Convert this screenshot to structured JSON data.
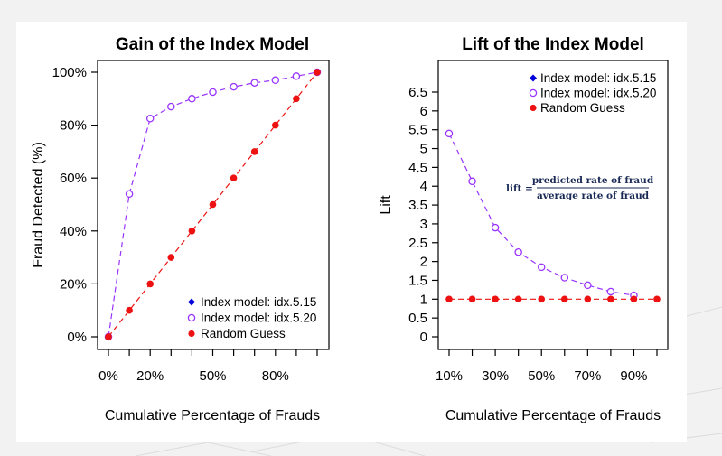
{
  "theme": {
    "index_color": "#9933ff",
    "index_model_15_marker": "#0000dd",
    "random_color": "#ee1111",
    "background": "#f2f2f2",
    "panel": "#ffffff"
  },
  "chart_data": [
    {
      "type": "line",
      "title": "Gain of the Index Model",
      "xlabel": "Cumulative Percentage of Frauds",
      "ylabel": "Fraud Detected (%)",
      "xlim": [
        0,
        100
      ],
      "ylim": [
        0,
        100
      ],
      "x_ticks": [
        0,
        20,
        50,
        80
      ],
      "x_tick_labels": [
        "0%",
        "20%",
        "50%",
        "80%"
      ],
      "y_ticks": [
        0,
        20,
        40,
        60,
        80,
        100
      ],
      "y_tick_labels": [
        "0%",
        "20%",
        "40%",
        "60%",
        "80%",
        "100%"
      ],
      "legend_position": "bottom-right",
      "series": [
        {
          "name": "Index model: idx.5.15",
          "style": "point",
          "marker": "filled-diamond",
          "x": [],
          "y": []
        },
        {
          "name": "Index model: idx.5.20",
          "style": "dashed-line-open-circle",
          "x": [
            0,
            10,
            20,
            30,
            40,
            50,
            60,
            70,
            80,
            90,
            100
          ],
          "y": [
            0,
            54,
            82.5,
            87,
            90,
            92.5,
            94.5,
            96,
            97,
            98.5,
            100
          ]
        },
        {
          "name": "Random Guess",
          "style": "dashed-line-filled-circle",
          "x": [
            0,
            10,
            20,
            30,
            40,
            50,
            60,
            70,
            80,
            90,
            100
          ],
          "y": [
            0,
            10,
            20,
            30,
            40,
            50,
            60,
            70,
            80,
            90,
            100
          ]
        }
      ]
    },
    {
      "type": "line",
      "title": "Lift of the Index Model",
      "xlabel": "Cumulative Percentage of Frauds",
      "ylabel": "Lift",
      "xlim": [
        10,
        100
      ],
      "ylim": [
        0,
        6.5
      ],
      "x_ticks": [
        10,
        30,
        50,
        70,
        90
      ],
      "x_tick_labels": [
        "10%",
        "30%",
        "50%",
        "70%",
        "90%"
      ],
      "y_ticks": [
        0,
        0.5,
        1,
        1.5,
        2,
        2.5,
        3,
        3.5,
        4,
        4.5,
        5,
        5.5,
        6,
        6.5
      ],
      "y_tick_labels": [
        "0",
        "0.5",
        "1",
        "1.5",
        "2",
        "2.5",
        "3",
        "3.5",
        "4",
        "4.5",
        "5",
        "5.5",
        "6",
        "6.5"
      ],
      "legend_position": "top-right",
      "annotation": {
        "lhs": "lift =",
        "numerator": "predicted rate of fraud",
        "denominator": "average rate of fraud"
      },
      "series": [
        {
          "name": "Index model: idx.5.15",
          "style": "point",
          "marker": "filled-diamond",
          "x": [],
          "y": []
        },
        {
          "name": "Index model: idx.5.20",
          "style": "dashed-line-open-circle",
          "x": [
            10,
            20,
            30,
            40,
            50,
            60,
            70,
            80,
            90
          ],
          "y": [
            5.4,
            4.13,
            2.9,
            2.25,
            1.85,
            1.57,
            1.37,
            1.2,
            1.1
          ]
        },
        {
          "name": "Random Guess",
          "style": "dashed-line-filled-circle",
          "x": [
            10,
            20,
            30,
            40,
            50,
            60,
            70,
            80,
            90,
            100
          ],
          "y": [
            1,
            1,
            1,
            1,
            1,
            1,
            1,
            1,
            1,
            1
          ]
        }
      ]
    }
  ]
}
